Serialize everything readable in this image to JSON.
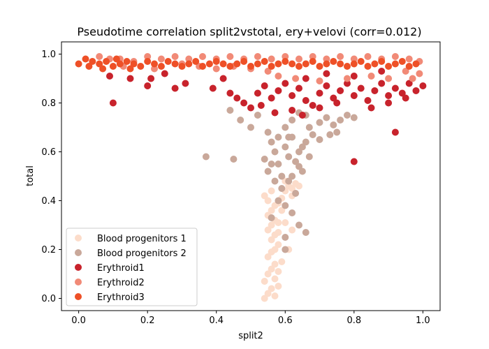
{
  "chart_data": {
    "type": "scatter",
    "title": "Pseudotime correlation split2vstotal, ery+velovi (corr=0.012)",
    "xlabel": "split2",
    "ylabel": "total",
    "xlim": [
      -0.05,
      1.05
    ],
    "ylim": [
      -0.05,
      1.05
    ],
    "xticks": [
      "0.0",
      "0.2",
      "0.4",
      "0.6",
      "0.8",
      "1.0"
    ],
    "yticks": [
      "0.0",
      "0.2",
      "0.4",
      "0.6",
      "0.8",
      "1.0"
    ],
    "grid": false,
    "legend_position": "lower-left",
    "series": [
      {
        "name": "Blood progenitors 1",
        "color": "#fcdcca",
        "points": [
          [
            0.54,
            0.0
          ],
          [
            0.55,
            0.02
          ],
          [
            0.56,
            0.04
          ],
          [
            0.57,
            0.01
          ],
          [
            0.58,
            0.05
          ],
          [
            0.54,
            0.07
          ],
          [
            0.55,
            0.1
          ],
          [
            0.56,
            0.12
          ],
          [
            0.57,
            0.14
          ],
          [
            0.58,
            0.11
          ],
          [
            0.59,
            0.15
          ],
          [
            0.55,
            0.17
          ],
          [
            0.56,
            0.19
          ],
          [
            0.57,
            0.2
          ],
          [
            0.58,
            0.22
          ],
          [
            0.56,
            0.24
          ],
          [
            0.57,
            0.26
          ],
          [
            0.55,
            0.28
          ],
          [
            0.56,
            0.3
          ],
          [
            0.57,
            0.32
          ],
          [
            0.58,
            0.31
          ],
          [
            0.55,
            0.34
          ],
          [
            0.56,
            0.36
          ],
          [
            0.57,
            0.38
          ],
          [
            0.58,
            0.39
          ],
          [
            0.59,
            0.41
          ],
          [
            0.6,
            0.44
          ],
          [
            0.61,
            0.46
          ],
          [
            0.62,
            0.45
          ],
          [
            0.6,
            0.48
          ],
          [
            0.55,
            0.4
          ],
          [
            0.54,
            0.42
          ],
          [
            0.56,
            0.44
          ],
          [
            0.61,
            0.2
          ],
          [
            0.6,
            0.31
          ],
          [
            0.62,
            0.42
          ],
          [
            0.63,
            0.47
          ],
          [
            0.64,
            0.46
          ],
          [
            0.58,
            0.27
          ],
          [
            0.59,
            0.36
          ],
          [
            0.62,
            0.28
          ],
          [
            0.57,
            0.08
          ]
        ]
      },
      {
        "name": "Blood progenitors 2",
        "color": "#c9a89a",
        "points": [
          [
            0.37,
            0.58
          ],
          [
            0.45,
            0.57
          ],
          [
            0.44,
            0.77
          ],
          [
            0.47,
            0.73
          ],
          [
            0.5,
            0.7
          ],
          [
            0.52,
            0.75
          ],
          [
            0.54,
            0.57
          ],
          [
            0.55,
            0.68
          ],
          [
            0.56,
            0.64
          ],
          [
            0.57,
            0.6
          ],
          [
            0.58,
            0.55
          ],
          [
            0.59,
            0.5
          ],
          [
            0.6,
            0.62
          ],
          [
            0.61,
            0.58
          ],
          [
            0.62,
            0.66
          ],
          [
            0.63,
            0.56
          ],
          [
            0.64,
            0.6
          ],
          [
            0.65,
            0.52
          ],
          [
            0.66,
            0.64
          ],
          [
            0.67,
            0.7
          ],
          [
            0.68,
            0.67
          ],
          [
            0.7,
            0.72
          ],
          [
            0.72,
            0.74
          ],
          [
            0.74,
            0.71
          ],
          [
            0.76,
            0.73
          ],
          [
            0.78,
            0.75
          ],
          [
            0.8,
            0.74
          ],
          [
            0.6,
            0.7
          ],
          [
            0.62,
            0.73
          ],
          [
            0.64,
            0.76
          ],
          [
            0.66,
            0.75
          ],
          [
            0.58,
            0.4
          ],
          [
            0.6,
            0.38
          ],
          [
            0.62,
            0.35
          ],
          [
            0.64,
            0.3
          ],
          [
            0.66,
            0.27
          ],
          [
            0.6,
            0.25
          ],
          [
            0.56,
            0.33
          ],
          [
            0.59,
            0.45
          ],
          [
            0.61,
            0.48
          ],
          [
            0.63,
            0.43
          ],
          [
            0.57,
            0.48
          ],
          [
            0.55,
            0.52
          ],
          [
            0.56,
            0.55
          ],
          [
            0.58,
            0.66
          ],
          [
            0.61,
            0.66
          ],
          [
            0.65,
            0.62
          ],
          [
            0.67,
            0.58
          ],
          [
            0.7,
            0.65
          ],
          [
            0.73,
            0.67
          ],
          [
            0.75,
            0.68
          ],
          [
            0.62,
            0.5
          ],
          [
            0.64,
            0.54
          ],
          [
            0.6,
            0.2
          ]
        ]
      },
      {
        "name": "Erythroid1",
        "color": "#c8232c",
        "points": [
          [
            0.1,
            0.8
          ],
          [
            0.09,
            0.91
          ],
          [
            0.15,
            0.9
          ],
          [
            0.2,
            0.87
          ],
          [
            0.21,
            0.9
          ],
          [
            0.25,
            0.92
          ],
          [
            0.28,
            0.86
          ],
          [
            0.31,
            0.88
          ],
          [
            0.39,
            0.86
          ],
          [
            0.42,
            0.9
          ],
          [
            0.44,
            0.84
          ],
          [
            0.46,
            0.82
          ],
          [
            0.48,
            0.8
          ],
          [
            0.5,
            0.78
          ],
          [
            0.52,
            0.84
          ],
          [
            0.54,
            0.87
          ],
          [
            0.56,
            0.82
          ],
          [
            0.58,
            0.85
          ],
          [
            0.6,
            0.88
          ],
          [
            0.62,
            0.83
          ],
          [
            0.64,
            0.86
          ],
          [
            0.66,
            0.81
          ],
          [
            0.68,
            0.79
          ],
          [
            0.7,
            0.84
          ],
          [
            0.72,
            0.87
          ],
          [
            0.74,
            0.82
          ],
          [
            0.76,
            0.85
          ],
          [
            0.78,
            0.88
          ],
          [
            0.8,
            0.83
          ],
          [
            0.82,
            0.86
          ],
          [
            0.84,
            0.81
          ],
          [
            0.86,
            0.85
          ],
          [
            0.88,
            0.88
          ],
          [
            0.9,
            0.83
          ],
          [
            0.92,
            0.86
          ],
          [
            0.94,
            0.84
          ],
          [
            0.96,
            0.88
          ],
          [
            0.98,
            0.85
          ],
          [
            1.0,
            0.87
          ],
          [
            0.8,
            0.56
          ],
          [
            0.92,
            0.68
          ],
          [
            0.65,
            0.75
          ],
          [
            0.7,
            0.78
          ],
          [
            0.75,
            0.8
          ],
          [
            0.85,
            0.78
          ],
          [
            0.9,
            0.8
          ],
          [
            0.95,
            0.82
          ],
          [
            0.62,
            0.77
          ],
          [
            0.57,
            0.76
          ],
          [
            0.53,
            0.79
          ],
          [
            0.66,
            0.9
          ],
          [
            0.72,
            0.92
          ],
          [
            0.8,
            0.91
          ],
          [
            0.88,
            0.93
          ]
        ]
      },
      {
        "name": "Erythroid2",
        "color": "#f18a77",
        "points": [
          [
            0.06,
            0.99
          ],
          [
            0.09,
            0.98
          ],
          [
            0.12,
            0.98
          ],
          [
            0.16,
            0.97
          ],
          [
            0.2,
            0.99
          ],
          [
            0.24,
            0.98
          ],
          [
            0.28,
            0.99
          ],
          [
            0.32,
            0.98
          ],
          [
            0.36,
            0.99
          ],
          [
            0.4,
            0.98
          ],
          [
            0.44,
            0.99
          ],
          [
            0.48,
            0.98
          ],
          [
            0.52,
            0.99
          ],
          [
            0.56,
            0.98
          ],
          [
            0.6,
            0.99
          ],
          [
            0.64,
            0.98
          ],
          [
            0.68,
            0.99
          ],
          [
            0.72,
            0.98
          ],
          [
            0.76,
            0.99
          ],
          [
            0.8,
            0.98
          ],
          [
            0.84,
            0.99
          ],
          [
            0.88,
            0.98
          ],
          [
            0.92,
            0.99
          ],
          [
            0.96,
            0.98
          ],
          [
            0.99,
            0.97
          ],
          [
            0.99,
            0.92
          ],
          [
            0.97,
            0.9
          ],
          [
            0.95,
            0.93
          ],
          [
            0.9,
            0.9
          ],
          [
            0.85,
            0.91
          ],
          [
            0.78,
            0.9
          ],
          [
            0.7,
            0.89
          ],
          [
            0.63,
            0.9
          ],
          [
            0.58,
            0.91
          ],
          [
            0.55,
            0.93
          ],
          [
            0.5,
            0.94
          ],
          [
            0.45,
            0.95
          ],
          [
            0.4,
            0.94
          ],
          [
            0.35,
            0.95
          ],
          [
            0.3,
            0.96
          ],
          [
            0.22,
            0.94
          ],
          [
            0.13,
            0.95
          ]
        ]
      },
      {
        "name": "Erythroid3",
        "color": "#ee5027",
        "points": [
          [
            0.0,
            0.96
          ],
          [
            0.02,
            0.98
          ],
          [
            0.04,
            0.97
          ],
          [
            0.06,
            0.96
          ],
          [
            0.08,
            0.97
          ],
          [
            0.1,
            0.95
          ],
          [
            0.12,
            0.96
          ],
          [
            0.14,
            0.97
          ],
          [
            0.16,
            0.96
          ],
          [
            0.18,
            0.95
          ],
          [
            0.2,
            0.97
          ],
          [
            0.22,
            0.96
          ],
          [
            0.24,
            0.95
          ],
          [
            0.26,
            0.97
          ],
          [
            0.28,
            0.96
          ],
          [
            0.3,
            0.95
          ],
          [
            0.32,
            0.96
          ],
          [
            0.34,
            0.97
          ],
          [
            0.36,
            0.95
          ],
          [
            0.38,
            0.96
          ],
          [
            0.4,
            0.97
          ],
          [
            0.42,
            0.96
          ],
          [
            0.44,
            0.95
          ],
          [
            0.46,
            0.96
          ],
          [
            0.48,
            0.97
          ],
          [
            0.5,
            0.95
          ],
          [
            0.52,
            0.96
          ],
          [
            0.54,
            0.97
          ],
          [
            0.56,
            0.95
          ],
          [
            0.58,
            0.96
          ],
          [
            0.6,
            0.97
          ],
          [
            0.62,
            0.96
          ],
          [
            0.64,
            0.95
          ],
          [
            0.66,
            0.96
          ],
          [
            0.68,
            0.97
          ],
          [
            0.7,
            0.95
          ],
          [
            0.72,
            0.96
          ],
          [
            0.74,
            0.97
          ],
          [
            0.76,
            0.96
          ],
          [
            0.78,
            0.95
          ],
          [
            0.8,
            0.96
          ],
          [
            0.82,
            0.97
          ],
          [
            0.84,
            0.95
          ],
          [
            0.86,
            0.96
          ],
          [
            0.88,
            0.97
          ],
          [
            0.9,
            0.95
          ],
          [
            0.92,
            0.96
          ],
          [
            0.94,
            0.97
          ],
          [
            0.96,
            0.95
          ],
          [
            0.98,
            0.96
          ],
          [
            0.03,
            0.95
          ],
          [
            0.07,
            0.94
          ],
          [
            0.11,
            0.98
          ],
          [
            0.15,
            0.94
          ]
        ]
      }
    ]
  }
}
